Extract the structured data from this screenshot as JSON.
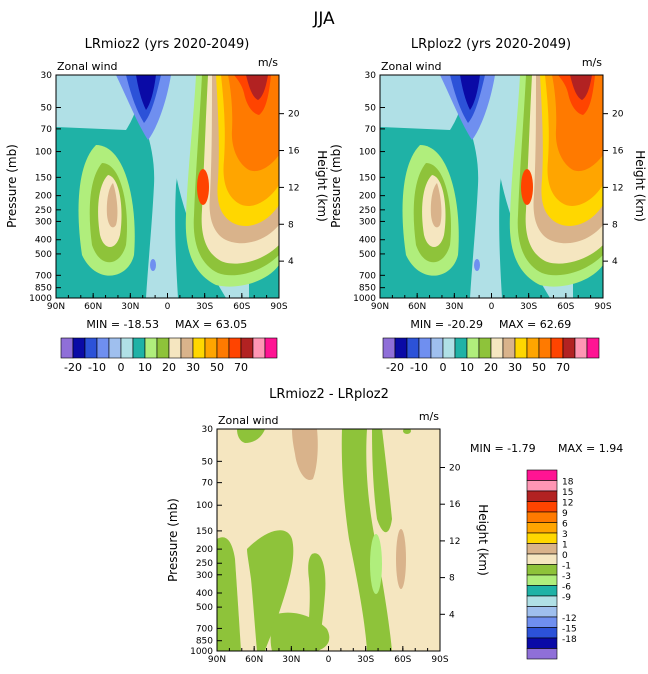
{
  "season_title": "JJA",
  "palette": [
    "#8f6fd8",
    "#0a0aa6",
    "#2c52d8",
    "#6f8ff0",
    "#9fbfee",
    "#b0e0e6",
    "#1fb2a6",
    "#b0ee7c",
    "#8ec33a",
    "#f5e6c0",
    "#d9b38b",
    "#ffd700",
    "#ffa500",
    "#ff7a00",
    "#ff4400",
    "#b22222",
    "#ff96b4",
    "#ff1493"
  ],
  "chart_data": [
    {
      "type": "contour",
      "title": "LRmioz2 (yrs 2020-2049)",
      "variable_label": "Zonal wind",
      "units": "m/s",
      "ylabel": "Pressure (mb)",
      "y2label": "Height (km)",
      "x_ticks": [
        "90N",
        "60N",
        "30N",
        "0",
        "30S",
        "60S",
        "90S"
      ],
      "pressure_ticks": [
        "30",
        "50",
        "70",
        "100",
        "150",
        "200",
        "250",
        "300",
        "400",
        "500",
        "700",
        "850",
        "1000"
      ],
      "height_ticks": [
        "20",
        "16",
        "12",
        "8",
        "4"
      ],
      "min_label": "MIN = -18.53",
      "max_label": "MAX = 63.05",
      "min": -18.53,
      "max": 63.05
    },
    {
      "type": "contour",
      "title": "LRploz2 (yrs 2020-2049)",
      "variable_label": "Zonal wind",
      "units": "m/s",
      "ylabel": "Pressure (mb)",
      "y2label": "Height (km)",
      "x_ticks": [
        "90N",
        "60N",
        "30N",
        "0",
        "30S",
        "60S",
        "90S"
      ],
      "pressure_ticks": [
        "30",
        "50",
        "70",
        "100",
        "150",
        "200",
        "250",
        "300",
        "400",
        "500",
        "700",
        "850",
        "1000"
      ],
      "height_ticks": [
        "20",
        "16",
        "12",
        "8",
        "4"
      ],
      "min_label": "MIN = -20.29",
      "max_label": "MAX = 62.69",
      "min": -20.29,
      "max": 62.69
    },
    {
      "type": "contour",
      "title": "LRmioz2 - LRploz2",
      "variable_label": "Zonal wind",
      "units": "m/s",
      "ylabel": "Pressure (mb)",
      "y2label": "Height (km)",
      "x_ticks": [
        "90N",
        "60N",
        "30N",
        "0",
        "30S",
        "60S",
        "90S"
      ],
      "pressure_ticks": [
        "30",
        "50",
        "70",
        "100",
        "150",
        "200",
        "250",
        "300",
        "400",
        "500",
        "700",
        "850",
        "1000"
      ],
      "height_ticks": [
        "20",
        "16",
        "12",
        "8",
        "4"
      ],
      "min_label": "MIN =   -1.79",
      "max_label": "MAX =    1.94",
      "min": -1.79,
      "max": 1.94
    }
  ],
  "colorbar_top": {
    "labels": [
      "-20",
      "-10",
      "0",
      "10",
      "20",
      "30",
      "50",
      "70"
    ]
  },
  "colorbar_diff": {
    "labels": [
      "18",
      "15",
      "12",
      "9",
      "6",
      "3",
      "1",
      "0",
      "-1",
      "-3",
      "-6",
      "-9",
      "-12",
      "-15",
      "-18"
    ]
  }
}
